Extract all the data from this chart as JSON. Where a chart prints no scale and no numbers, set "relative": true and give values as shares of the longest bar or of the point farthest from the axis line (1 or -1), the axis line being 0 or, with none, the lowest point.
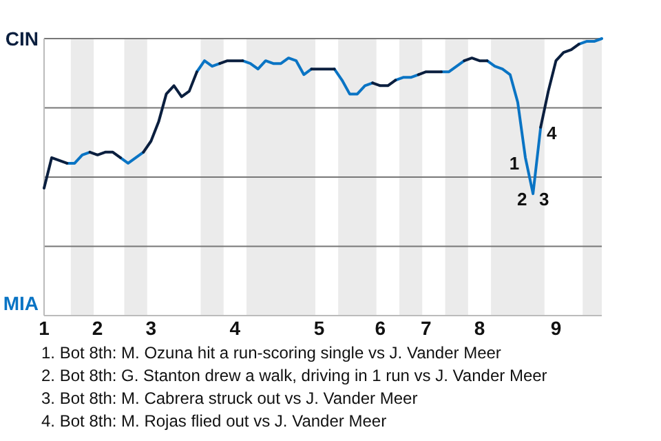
{
  "chart_data": {
    "type": "line",
    "relative": true,
    "categories": [
      "1",
      null,
      null,
      null,
      null,
      null,
      null,
      "2",
      null,
      null,
      null,
      null,
      null,
      null,
      "3",
      null,
      null,
      null,
      null,
      null,
      null,
      null,
      null,
      null,
      null,
      "4",
      null,
      null,
      null,
      null,
      null,
      null,
      null,
      null,
      null,
      null,
      "5",
      null,
      null,
      null,
      null,
      null,
      null,
      null,
      "6",
      null,
      null,
      null,
      null,
      null,
      "7",
      null,
      null,
      null,
      null,
      null,
      null,
      "8",
      null,
      null,
      null,
      null,
      null,
      null,
      null,
      null,
      null,
      "9",
      null,
      null,
      null,
      null,
      null,
      null
    ],
    "series": [
      {
        "color": "#0b1f3f",
        "values": [
          0.46,
          0.57,
          0.56,
          0.55,
          null,
          null,
          0.59,
          0.58,
          0.59,
          0.59,
          0.57,
          null,
          null,
          0.59,
          0.63,
          0.7,
          0.8,
          0.83,
          0.79,
          0.81,
          0.88,
          null,
          null,
          0.91,
          0.92,
          0.92,
          0.92,
          null,
          null,
          null,
          null,
          null,
          null,
          null,
          null,
          0.89,
          0.89,
          0.89,
          0.89,
          null,
          null,
          null,
          null,
          0.84,
          0.83,
          0.83,
          0.85,
          null,
          null,
          0.87,
          0.88,
          0.88,
          0.88,
          null,
          null,
          0.92,
          0.93,
          0.92,
          0.92,
          null,
          null,
          null,
          null,
          null,
          null,
          0.68,
          0.81,
          0.92,
          0.95,
          0.96,
          0.98,
          null,
          null,
          null
        ]
      },
      {
        "color": "#0a74c4",
        "values": [
          null,
          null,
          null,
          0.55,
          0.55,
          0.58,
          0.59,
          null,
          null,
          null,
          0.57,
          0.55,
          0.57,
          0.59,
          null,
          null,
          null,
          null,
          null,
          null,
          0.88,
          0.92,
          0.9,
          0.91,
          null,
          null,
          0.92,
          0.91,
          0.89,
          0.92,
          0.91,
          0.91,
          0.93,
          0.92,
          0.87,
          0.89,
          null,
          null,
          0.89,
          0.85,
          0.8,
          0.8,
          0.83,
          0.84,
          null,
          null,
          0.85,
          0.86,
          0.86,
          0.87,
          null,
          null,
          0.88,
          0.88,
          0.9,
          0.92,
          null,
          null,
          0.92,
          0.9,
          0.89,
          0.87,
          0.77,
          0.57,
          0.44,
          0.68,
          null,
          null,
          null,
          null,
          0.98,
          0.99,
          0.99,
          1.0
        ]
      }
    ],
    "line_style": "solid",
    "ref_lines": [
      {
        "axis": "y",
        "value": 0.25,
        "color": "#777777"
      },
      {
        "axis": "y",
        "value": 0.5,
        "color": "#777777"
      },
      {
        "axis": "y",
        "value": 0.75,
        "color": "#777777"
      },
      {
        "axis": "y",
        "value": 1,
        "color": "#777777"
      }
    ],
    "annotations": [
      "CIN",
      "MIA",
      "1",
      "2",
      "3",
      "4",
      "1. Bot 8th: M. Ozuna hit a run-scoring single vs J. Vander Meer",
      "2. Bot 8th: G. Stanton drew a walk, driving in 1 run vs J. Vander Meer",
      "3. Bot 8th: M. Cabrera struck out vs J. Vander Meer",
      "4. Bot 8th: M. Rojas flied out vs J. Vander Meer"
    ]
  }
}
